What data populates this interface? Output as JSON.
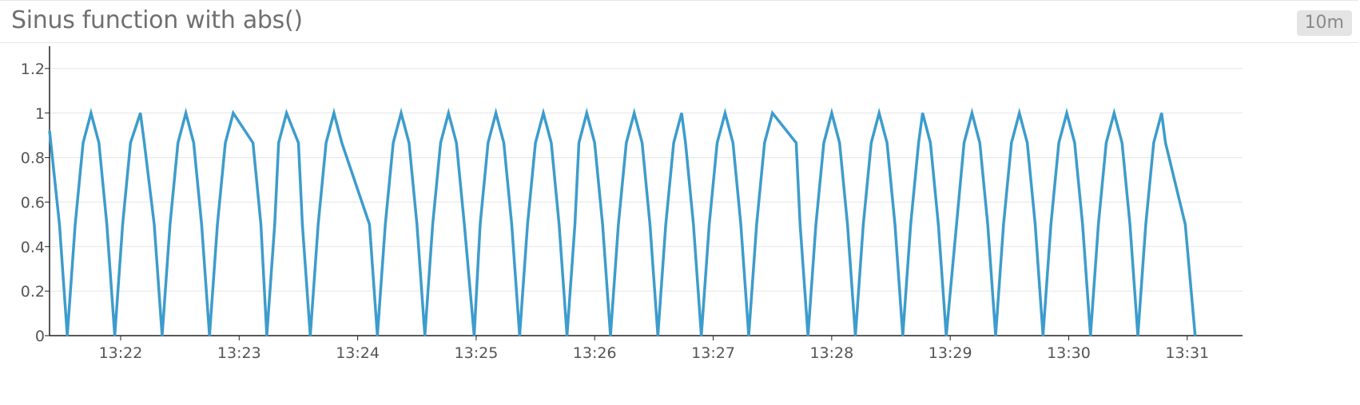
{
  "panel": {
    "title": "Sinus function with abs()",
    "time_range": "10m"
  },
  "colors": {
    "series": "#3d9ccc",
    "grid": "#e5e5e5",
    "axis": "#222222"
  },
  "chart_data": {
    "type": "line",
    "title": "Sinus function with abs()",
    "xlabel": "",
    "ylabel": "",
    "xlim": [
      "13:21:24",
      "13:31:28"
    ],
    "ylim": [
      0,
      1.3
    ],
    "x_ticks": [
      "13:22",
      "13:23",
      "13:24",
      "13:25",
      "13:26",
      "13:27",
      "13:28",
      "13:29",
      "13:30",
      "13:31"
    ],
    "y_ticks": [
      "0",
      "0.2",
      "0.4",
      "0.6",
      "0.8",
      "1",
      "1.2"
    ],
    "grid": true,
    "legend": "none",
    "series": [
      {
        "values": [
          [
            "13:21:24",
            0.92
          ],
          [
            "13:21:29",
            0.5
          ],
          [
            "13:21:33",
            0
          ],
          [
            "13:21:37",
            0.5
          ],
          [
            "13:21:41",
            0.866
          ],
          [
            "13:21:45",
            1
          ],
          [
            "13:21:49",
            0.866
          ],
          [
            "13:21:53",
            0.5
          ],
          [
            "13:21:57",
            0
          ],
          [
            "13:22:01",
            0.5
          ],
          [
            "13:22:05",
            0.866
          ],
          [
            "13:22:10",
            1
          ],
          [
            "13:22:12",
            0.866
          ],
          [
            "13:22:17",
            0.5
          ],
          [
            "13:22:21",
            0
          ],
          [
            "13:22:25",
            0.5
          ],
          [
            "13:22:29",
            0.866
          ],
          [
            "13:22:33",
            1
          ],
          [
            "13:22:37",
            0.866
          ],
          [
            "13:22:41",
            0.5
          ],
          [
            "13:22:45",
            0
          ],
          [
            "13:22:49",
            0.5
          ],
          [
            "13:22:53",
            0.866
          ],
          [
            "13:22:57",
            1
          ],
          [
            "13:23:07",
            0.866
          ],
          [
            "13:23:11",
            0.5
          ],
          [
            "13:23:14",
            0
          ],
          [
            "13:23:18",
            0.5
          ],
          [
            "13:23:20",
            0.866
          ],
          [
            "13:23:24",
            1
          ],
          [
            "13:23:30",
            0.866
          ],
          [
            "13:23:32",
            0.5
          ],
          [
            "13:23:36",
            0
          ],
          [
            "13:23:40",
            0.5
          ],
          [
            "13:23:44",
            0.866
          ],
          [
            "13:23:48",
            1
          ],
          [
            "13:23:52",
            0.866
          ],
          [
            "13:24:06",
            0.5
          ],
          [
            "13:24:10",
            0
          ],
          [
            "13:24:14",
            0.5
          ],
          [
            "13:24:18",
            0.866
          ],
          [
            "13:24:22",
            1
          ],
          [
            "13:24:26",
            0.866
          ],
          [
            "13:24:30",
            0.5
          ],
          [
            "13:24:34",
            0
          ],
          [
            "13:24:38",
            0.5
          ],
          [
            "13:24:42",
            0.866
          ],
          [
            "13:24:46",
            1
          ],
          [
            "13:24:50",
            0.866
          ],
          [
            "13:24:54",
            0.5
          ],
          [
            "13:24:59",
            0
          ],
          [
            "13:25:02",
            0.5
          ],
          [
            "13:25:06",
            0.866
          ],
          [
            "13:25:10",
            1
          ],
          [
            "13:25:14",
            0.866
          ],
          [
            "13:25:18",
            0.5
          ],
          [
            "13:25:22",
            0
          ],
          [
            "13:25:26",
            0.5
          ],
          [
            "13:25:30",
            0.866
          ],
          [
            "13:25:34",
            1
          ],
          [
            "13:25:38",
            0.866
          ],
          [
            "13:25:42",
            0.5
          ],
          [
            "13:25:46",
            0
          ],
          [
            "13:25:50",
            0.5
          ],
          [
            "13:25:52",
            0.866
          ],
          [
            "13:25:56",
            1
          ],
          [
            "13:26:00",
            0.866
          ],
          [
            "13:26:04",
            0.5
          ],
          [
            "13:26:08",
            0
          ],
          [
            "13:26:12",
            0.5
          ],
          [
            "13:26:16",
            0.866
          ],
          [
            "13:26:20",
            1
          ],
          [
            "13:26:24",
            0.866
          ],
          [
            "13:26:28",
            0.5
          ],
          [
            "13:26:32",
            0
          ],
          [
            "13:26:36",
            0.5
          ],
          [
            "13:26:40",
            0.866
          ],
          [
            "13:26:44",
            1
          ],
          [
            "13:26:46",
            0.866
          ],
          [
            "13:26:50",
            0.5
          ],
          [
            "13:26:54",
            0
          ],
          [
            "13:26:58",
            0.5
          ],
          [
            "13:27:02",
            0.866
          ],
          [
            "13:27:06",
            1
          ],
          [
            "13:27:10",
            0.866
          ],
          [
            "13:27:14",
            0.5
          ],
          [
            "13:27:18",
            0
          ],
          [
            "13:27:22",
            0.5
          ],
          [
            "13:27:26",
            0.866
          ],
          [
            "13:27:30",
            1
          ],
          [
            "13:27:42",
            0.866
          ],
          [
            "13:27:44",
            0.5
          ],
          [
            "13:27:48",
            0
          ],
          [
            "13:27:52",
            0.5
          ],
          [
            "13:27:56",
            0.866
          ],
          [
            "13:28:00",
            1
          ],
          [
            "13:28:04",
            0.866
          ],
          [
            "13:28:08",
            0.5
          ],
          [
            "13:28:12",
            0
          ],
          [
            "13:28:16",
            0.5
          ],
          [
            "13:28:20",
            0.866
          ],
          [
            "13:28:24",
            1
          ],
          [
            "13:28:28",
            0.866
          ],
          [
            "13:28:32",
            0.5
          ],
          [
            "13:28:36",
            0
          ],
          [
            "13:28:40",
            0.5
          ],
          [
            "13:28:44",
            0.866
          ],
          [
            "13:28:46",
            1
          ],
          [
            "13:28:50",
            0.866
          ],
          [
            "13:28:54",
            0.5
          ],
          [
            "13:28:58",
            0
          ],
          [
            "13:29:07",
            0.866
          ],
          [
            "13:29:11",
            1
          ],
          [
            "13:29:15",
            0.866
          ],
          [
            "13:29:19",
            0.5
          ],
          [
            "13:29:23",
            0
          ],
          [
            "13:29:27",
            0.5
          ],
          [
            "13:29:31",
            0.866
          ],
          [
            "13:29:35",
            1
          ],
          [
            "13:29:39",
            0.866
          ],
          [
            "13:29:43",
            0.5
          ],
          [
            "13:29:47",
            0
          ],
          [
            "13:29:51",
            0.5
          ],
          [
            "13:29:55",
            0.866
          ],
          [
            "13:29:59",
            1
          ],
          [
            "13:30:03",
            0.866
          ],
          [
            "13:30:07",
            0.5
          ],
          [
            "13:30:11",
            0
          ],
          [
            "13:30:15",
            0.5
          ],
          [
            "13:30:19",
            0.866
          ],
          [
            "13:30:23",
            1
          ],
          [
            "13:30:27",
            0.866
          ],
          [
            "13:30:31",
            0.5
          ],
          [
            "13:30:35",
            0
          ],
          [
            "13:30:39",
            0.5
          ],
          [
            "13:30:43",
            0.866
          ],
          [
            "13:30:47",
            1
          ],
          [
            "13:30:49",
            0.866
          ],
          [
            "13:30:59",
            0.5
          ],
          [
            "13:31:04",
            0
          ]
        ]
      }
    ]
  }
}
